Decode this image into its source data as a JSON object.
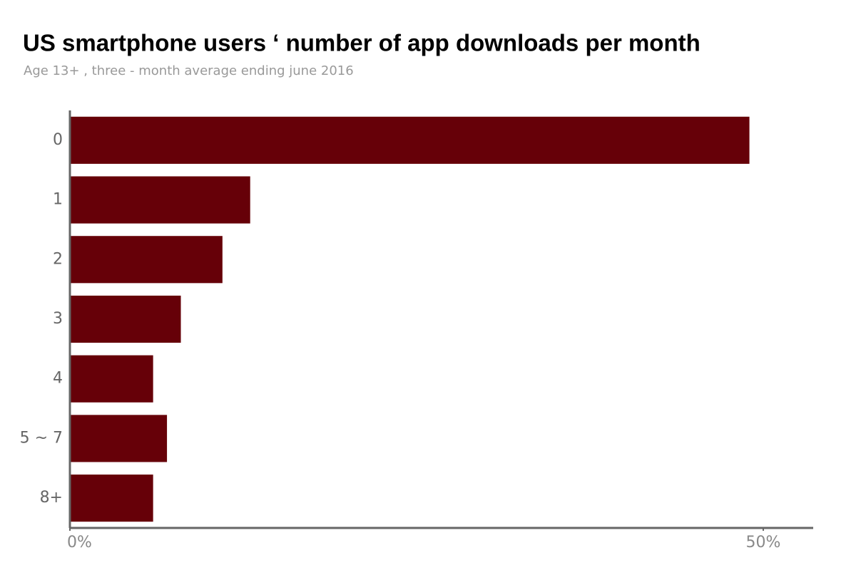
{
  "chart_data": {
    "type": "hbar",
    "title": "US smartphone users ‘ number of app downloads per month",
    "subtitle": "Age 13+ , three - month average ending june 2016",
    "categories": [
      "0",
      "1",
      "2",
      "3",
      "4",
      "5 ~ 7",
      "8+"
    ],
    "values": [
      49,
      13,
      11,
      8,
      6,
      7,
      6
    ],
    "color": "#660008",
    "xlim": [
      0,
      53.6
    ],
    "xticks": [
      {
        "value": 0,
        "label": "0%"
      },
      {
        "value": 50,
        "label": "50%"
      }
    ]
  }
}
